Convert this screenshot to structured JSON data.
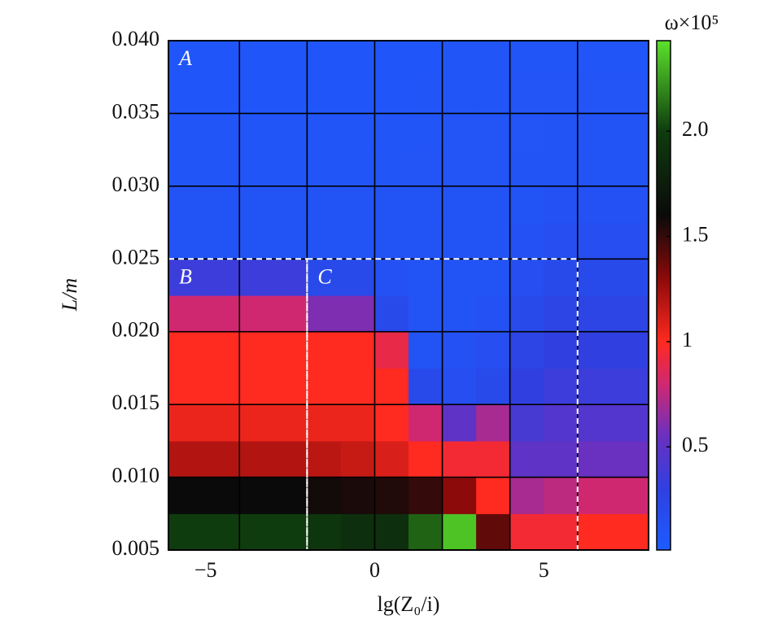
{
  "chart_data": {
    "type": "heatmap",
    "xlabel": "lg(Z₀/i)",
    "ylabel": "L/m",
    "colorbar_label": "ω×10⁵",
    "xlim": [
      -6.1,
      8.1
    ],
    "ylim": [
      0.005,
      0.04
    ],
    "xticks": [
      {
        "value": -5,
        "label": "−5"
      },
      0,
      5
    ],
    "xgrid": [
      -4,
      -2,
      0,
      2,
      4,
      6
    ],
    "yticks": [
      0.005,
      {
        "value": 0.01,
        "label": "0.010"
      },
      0.015,
      {
        "value": 0.02,
        "label": "0.020"
      },
      0.025,
      {
        "value": 0.03,
        "label": "0.030"
      },
      0.035,
      {
        "value": 0.04,
        "label": "0.040"
      }
    ],
    "grid": true,
    "x": [
      -5.5,
      -4.5,
      -3.5,
      -2.5,
      -1.5,
      -0.5,
      0.5,
      1.5,
      2.5,
      3.5,
      4.5,
      5.5,
      6.5,
      7.5
    ],
    "y": [
      0.00625,
      0.00875,
      0.01125,
      0.01375,
      0.01625,
      0.01875,
      0.02125,
      0.02375,
      0.02625,
      0.02875,
      0.03125,
      0.03375,
      0.03625,
      0.03875
    ],
    "z": [
      [
        2.0,
        2.0,
        2.0,
        2.0,
        1.95,
        1.9,
        1.9,
        2.1,
        2.35,
        1.4,
        0.95,
        0.95,
        1.0,
        1.0
      ],
      [
        1.6,
        1.6,
        1.6,
        1.6,
        1.58,
        1.56,
        1.55,
        1.5,
        1.3,
        1.0,
        0.7,
        0.75,
        0.8,
        0.8
      ],
      [
        1.2,
        1.2,
        1.2,
        1.2,
        1.18,
        1.15,
        1.1,
        1.0,
        0.95,
        0.95,
        0.5,
        0.5,
        0.55,
        0.55
      ],
      [
        1.05,
        1.05,
        1.05,
        1.05,
        1.05,
        1.05,
        1.0,
        0.8,
        0.5,
        0.7,
        0.4,
        0.45,
        0.45,
        0.45
      ],
      [
        1.0,
        1.0,
        1.0,
        1.0,
        1.0,
        1.0,
        1.0,
        0.2,
        0.15,
        0.2,
        0.3,
        0.35,
        0.35,
        0.35
      ],
      [
        1.0,
        1.0,
        1.0,
        1.0,
        1.0,
        1.0,
        0.9,
        0.1,
        0.12,
        0.15,
        0.25,
        0.3,
        0.3,
        0.3
      ],
      [
        0.8,
        0.8,
        0.8,
        0.8,
        0.6,
        0.6,
        0.2,
        0.1,
        0.1,
        0.12,
        0.2,
        0.25,
        0.25,
        0.25
      ],
      [
        0.35,
        0.35,
        0.35,
        0.35,
        0.2,
        0.2,
        0.12,
        0.1,
        0.1,
        0.1,
        0.15,
        0.2,
        0.2,
        0.2
      ],
      [
        0.1,
        0.1,
        0.1,
        0.1,
        0.1,
        0.1,
        0.1,
        0.1,
        0.1,
        0.1,
        0.12,
        0.15,
        0.15,
        0.15
      ],
      [
        0.1,
        0.1,
        0.1,
        0.1,
        0.1,
        0.1,
        0.1,
        0.1,
        0.1,
        0.1,
        0.1,
        0.12,
        0.12,
        0.12
      ],
      [
        0.08,
        0.08,
        0.08,
        0.08,
        0.08,
        0.08,
        0.08,
        0.09,
        0.09,
        0.09,
        0.1,
        0.1,
        0.1,
        0.1
      ],
      [
        0.08,
        0.08,
        0.08,
        0.08,
        0.08,
        0.08,
        0.08,
        0.08,
        0.09,
        0.09,
        0.09,
        0.1,
        0.1,
        0.1
      ],
      [
        0.07,
        0.07,
        0.07,
        0.07,
        0.07,
        0.07,
        0.07,
        0.08,
        0.08,
        0.08,
        0.09,
        0.09,
        0.09,
        0.09
      ],
      [
        0.07,
        0.07,
        0.07,
        0.07,
        0.07,
        0.07,
        0.07,
        0.07,
        0.08,
        0.08,
        0.08,
        0.08,
        0.08,
        0.08
      ]
    ],
    "clim": [
      0.01,
      2.43
    ],
    "cticks": [
      0.5,
      1,
      1.5,
      {
        "value": 2,
        "label": "2.0"
      }
    ],
    "colormap": [
      {
        "value": 0.01,
        "color": "#1c5cff"
      },
      {
        "value": 0.3,
        "color": "#3040e0"
      },
      {
        "value": 0.55,
        "color": "#6a30c0"
      },
      {
        "value": 0.8,
        "color": "#d02870"
      },
      {
        "value": 1.0,
        "color": "#ff2a20"
      },
      {
        "value": 1.3,
        "color": "#8c0a0a"
      },
      {
        "value": 1.6,
        "color": "#0a0a0a"
      },
      {
        "value": 2.0,
        "color": "#0e3c0e"
      },
      {
        "value": 2.43,
        "color": "#5ce22c"
      }
    ],
    "regions": [
      {
        "label": "A",
        "xlim": [
          -6.1,
          8.1
        ],
        "ylim": [
          0.025,
          0.04
        ],
        "border": "none"
      },
      {
        "label": "B",
        "xlim": [
          -6.1,
          -2
        ],
        "ylim": [
          0.005,
          0.025
        ],
        "border": "dashed"
      },
      {
        "label": "C",
        "xlim": [
          -2,
          6
        ],
        "ylim": [
          0.005,
          0.025
        ],
        "border": "dashed"
      }
    ]
  }
}
